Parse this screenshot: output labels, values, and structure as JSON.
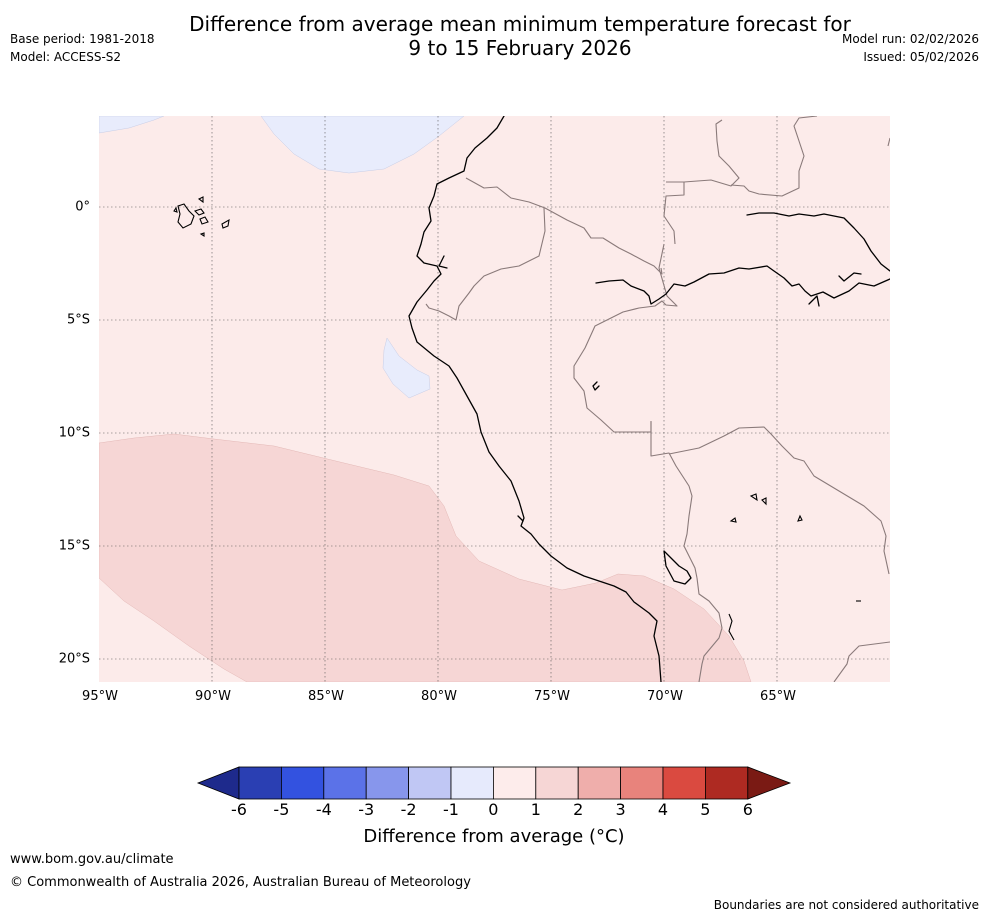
{
  "title_line1": "Difference from average mean minimum temperature forecast for",
  "title_line2": "9 to 15 February 2026",
  "base_period": "Base period: 1981-2018",
  "model": "Model: ACCESS-S2",
  "model_run": "Model run: 02/02/2026",
  "issued": "Issued: 05/02/2026",
  "lat_labels": [
    "0°",
    "5°S",
    "10°S",
    "15°S",
    "20°S"
  ],
  "lon_labels": [
    "95°W",
    "90°W",
    "85°W",
    "80°W",
    "75°W",
    "70°W",
    "65°W"
  ],
  "colorbar": {
    "ticks": [
      "-6",
      "-5",
      "-4",
      "-3",
      "-2",
      "-1",
      "0",
      "1",
      "2",
      "3",
      "4",
      "5",
      "6"
    ],
    "colors": [
      "#1e2a8c",
      "#2a3fb3",
      "#3352e0",
      "#5b72e8",
      "#8796ec",
      "#c0c7f4",
      "#e6eafc",
      "#fdeceb",
      "#f6d6d5",
      "#efaeab",
      "#e8837c",
      "#da4a40",
      "#ae2a22",
      "#7a1a14"
    ],
    "label": "Difference from average (°C)"
  },
  "legend_colors": {
    "anomaly_0_1": "#fcebea",
    "anomaly_1_2": "#f6d6d5",
    "anomaly_-1_0": "#e8ecfc"
  },
  "footer_url": "www.bom.gov.au/climate",
  "footer_copyright": "© Commonwealth of Australia 2026, Australian Bureau of Meteorology",
  "disclaimer": "Boundaries are not considered authoritative"
}
